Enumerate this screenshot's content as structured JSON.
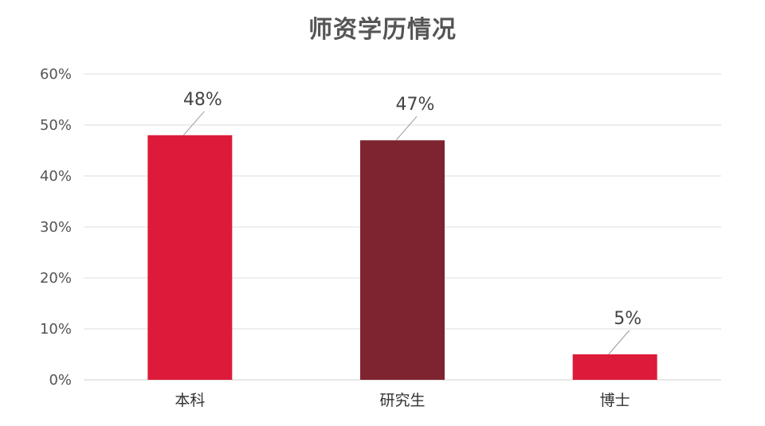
{
  "chart_data": {
    "type": "bar",
    "title": "师资学历情况",
    "categories": [
      "本科",
      "研究生",
      "博士"
    ],
    "values": [
      48,
      47,
      5
    ],
    "data_labels": [
      "48%",
      "47%",
      "5%"
    ],
    "bar_colors": [
      "#DC1B3A",
      "#7D2430",
      "#DC1B3A"
    ],
    "ylim": [
      0,
      60
    ],
    "y_ticks": [
      0,
      10,
      20,
      30,
      40,
      50,
      60
    ],
    "y_tick_labels": [
      "0%",
      "10%",
      "20%",
      "30%",
      "40%",
      "50%",
      "60%"
    ],
    "xlabel": "",
    "ylabel": "",
    "grid": true,
    "legend": "none"
  }
}
